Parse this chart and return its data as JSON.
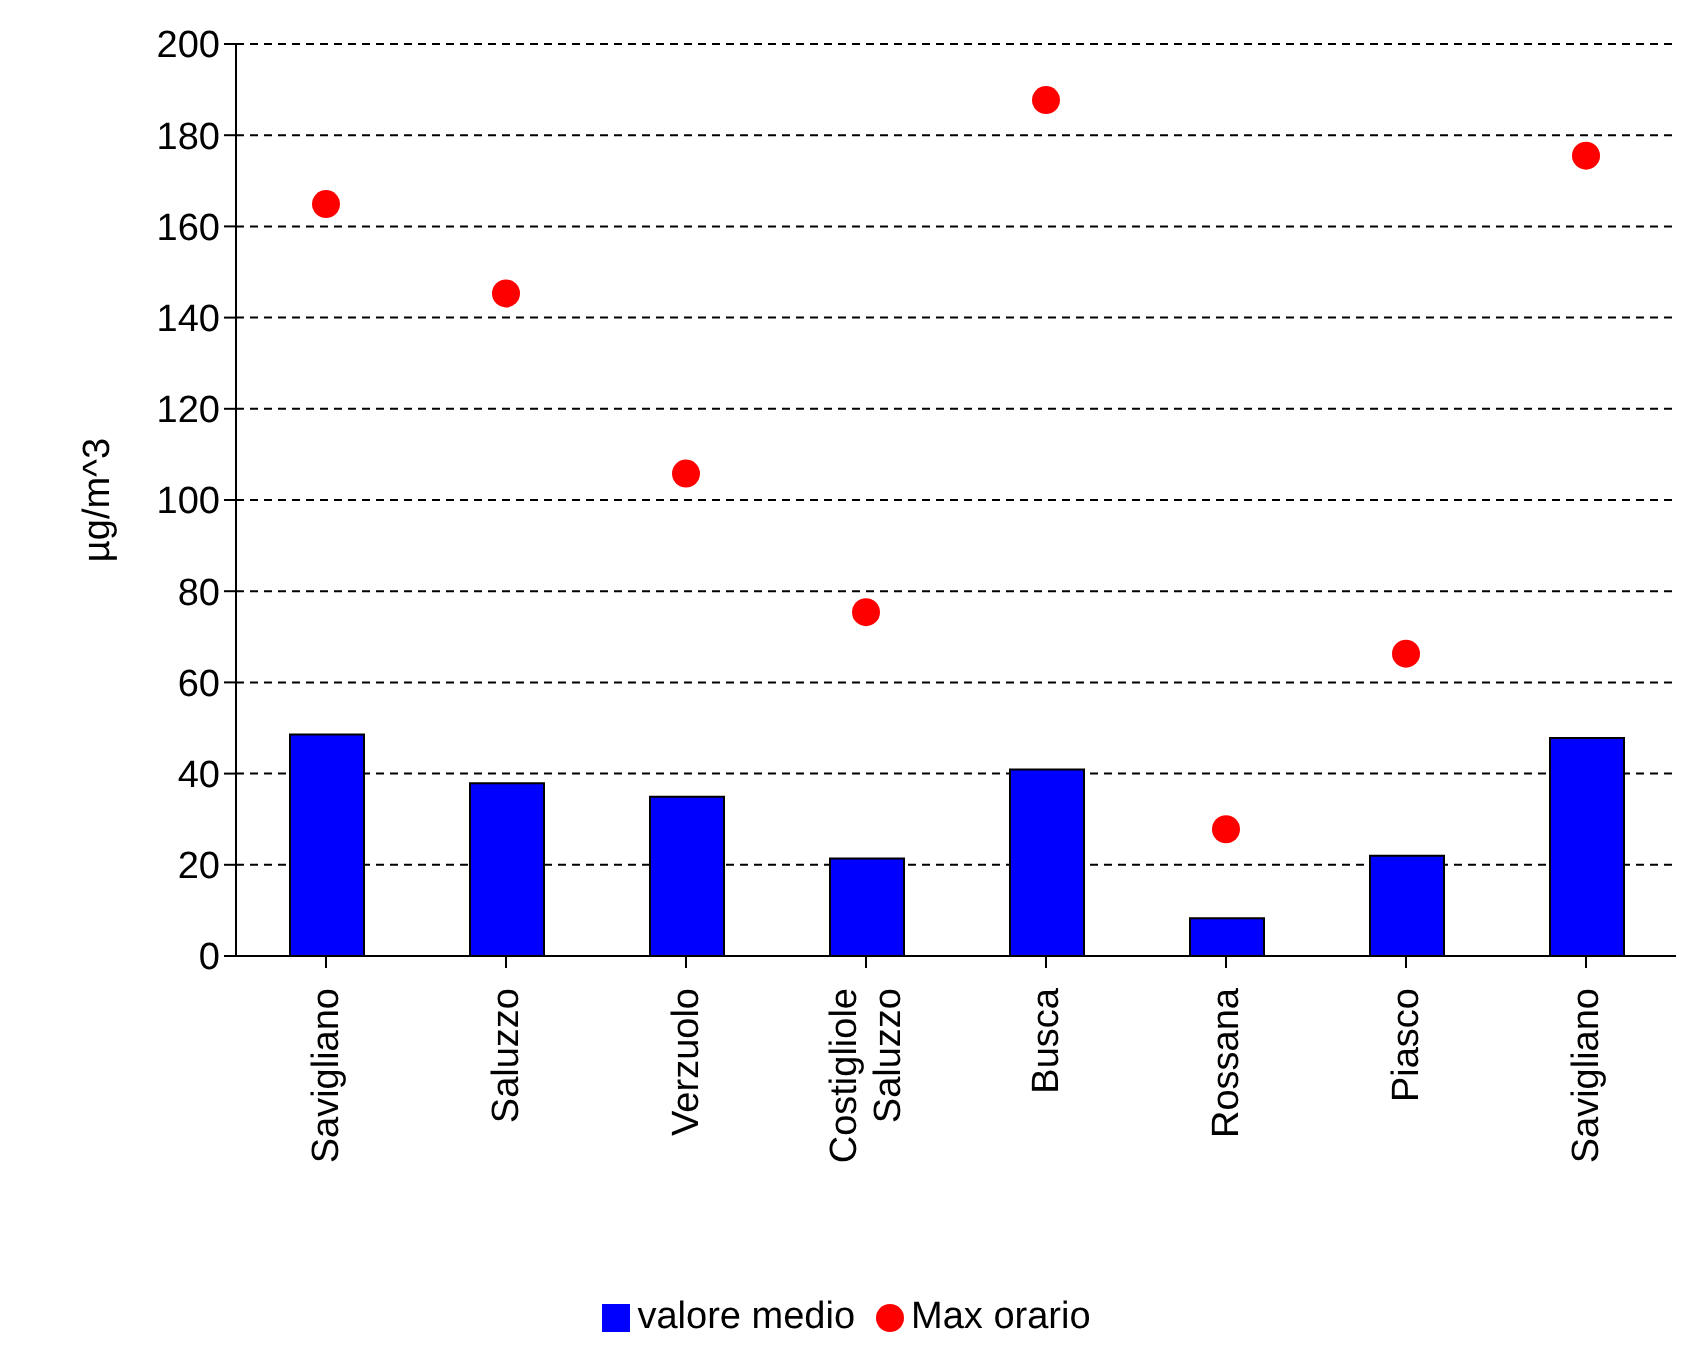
{
  "chart_data": {
    "type": "bar",
    "ylabel": "µg/m^3",
    "categories": [
      "Savigliano",
      "Saluzzo",
      "Verzuolo",
      "Costigliole Saluzzo",
      "Busca",
      "Rossana",
      "Piasco",
      "Savigliano"
    ],
    "series": [
      {
        "name": "valore medio",
        "color": "#0000ff",
        "values": [
          48.6,
          37.9,
          34.9,
          21.4,
          40.9,
          8.3,
          22.0,
          47.8
        ]
      },
      {
        "name": "Max orario",
        "type": "scatter",
        "color": "#ff0000",
        "values": [
          164.9,
          145.3,
          105.8,
          75.4,
          187.7,
          27.8,
          66.3,
          175.5
        ]
      }
    ],
    "ylim": [
      0,
      200
    ],
    "yticks": [
      0,
      20,
      40,
      60,
      80,
      100,
      120,
      140,
      160,
      180,
      200
    ],
    "grid": "y",
    "legend": "bottom",
    "marker": "circle"
  }
}
